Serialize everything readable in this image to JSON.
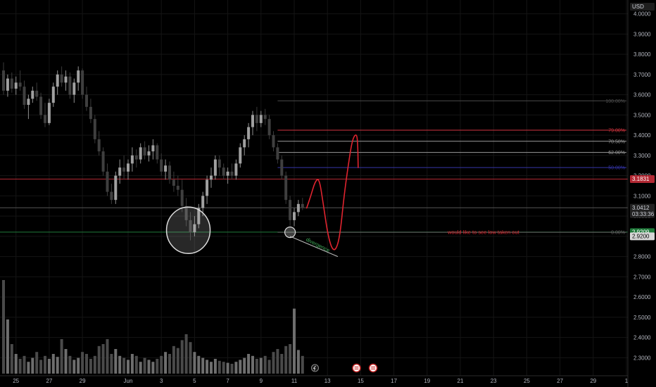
{
  "chart_data": {
    "type": "candlestick",
    "currency": "USD",
    "price_axis": {
      "min": 2.27,
      "max": 4.03,
      "ticks": [
        "4.0000",
        "3.9000",
        "3.8000",
        "3.7000",
        "3.6000",
        "3.5000",
        "3.4000",
        "3.3000",
        "3.2000",
        "3.1000",
        "3.0000",
        "2.9000",
        "2.8000",
        "2.7000",
        "2.6000",
        "2.5000",
        "2.4000",
        "2.3000"
      ]
    },
    "time_axis": {
      "labels": [
        {
          "bar": 3,
          "text": "25"
        },
        {
          "bar": 11,
          "text": "27"
        },
        {
          "bar": 19,
          "text": "29"
        },
        {
          "bar": 30,
          "text": "Jun"
        },
        {
          "bar": 38,
          "text": "3"
        },
        {
          "bar": 46,
          "text": "5"
        },
        {
          "bar": 54,
          "text": "7"
        },
        {
          "bar": 62,
          "text": "9"
        },
        {
          "bar": 70,
          "text": "11"
        },
        {
          "bar": 78,
          "text": "13"
        },
        {
          "bar": 86,
          "text": "15"
        },
        {
          "bar": 94,
          "text": "17"
        },
        {
          "bar": 102,
          "text": "19"
        },
        {
          "bar": 110,
          "text": "21"
        },
        {
          "bar": 118,
          "text": "23"
        },
        {
          "bar": 126,
          "text": "25"
        },
        {
          "bar": 134,
          "text": "27"
        },
        {
          "bar": 142,
          "text": "29"
        },
        {
          "bar": 150,
          "text": "1"
        }
      ]
    },
    "candles": [
      [
        3.72,
        3.76,
        3.6,
        3.62
      ],
      [
        3.62,
        3.7,
        3.59,
        3.68
      ],
      [
        3.68,
        3.71,
        3.61,
        3.63
      ],
      [
        3.63,
        3.69,
        3.6,
        3.66
      ],
      [
        3.66,
        3.72,
        3.62,
        3.64
      ],
      [
        3.64,
        3.67,
        3.53,
        3.55
      ],
      [
        3.55,
        3.6,
        3.48,
        3.58
      ],
      [
        3.58,
        3.64,
        3.56,
        3.62
      ],
      [
        3.62,
        3.66,
        3.57,
        3.59
      ],
      [
        3.59,
        3.61,
        3.48,
        3.5
      ],
      [
        3.5,
        3.56,
        3.44,
        3.46
      ],
      [
        3.46,
        3.58,
        3.45,
        3.56
      ],
      [
        3.56,
        3.66,
        3.54,
        3.64
      ],
      [
        3.64,
        3.72,
        3.6,
        3.7
      ],
      [
        3.7,
        3.74,
        3.64,
        3.66
      ],
      [
        3.66,
        3.72,
        3.62,
        3.69
      ],
      [
        3.69,
        3.71,
        3.58,
        3.6
      ],
      [
        3.6,
        3.68,
        3.56,
        3.66
      ],
      [
        3.66,
        3.74,
        3.62,
        3.72
      ],
      [
        3.72,
        3.73,
        3.58,
        3.6
      ],
      [
        3.6,
        3.64,
        3.52,
        3.54
      ],
      [
        3.54,
        3.58,
        3.46,
        3.48
      ],
      [
        3.48,
        3.5,
        3.36,
        3.38
      ],
      [
        3.38,
        3.42,
        3.3,
        3.32
      ],
      [
        3.32,
        3.34,
        3.2,
        3.22
      ],
      [
        3.22,
        3.26,
        3.1,
        3.12
      ],
      [
        3.12,
        3.16,
        3.06,
        3.08
      ],
      [
        3.08,
        3.22,
        3.06,
        3.2
      ],
      [
        3.2,
        3.28,
        3.16,
        3.24
      ],
      [
        3.24,
        3.3,
        3.18,
        3.22
      ],
      [
        3.22,
        3.28,
        3.18,
        3.26
      ],
      [
        3.26,
        3.34,
        3.22,
        3.3
      ],
      [
        3.3,
        3.33,
        3.24,
        3.28
      ],
      [
        3.28,
        3.36,
        3.26,
        3.34
      ],
      [
        3.34,
        3.37,
        3.28,
        3.3
      ],
      [
        3.3,
        3.35,
        3.27,
        3.32
      ],
      [
        3.32,
        3.38,
        3.28,
        3.35
      ],
      [
        3.35,
        3.36,
        3.26,
        3.28
      ],
      [
        3.28,
        3.31,
        3.2,
        3.22
      ],
      [
        3.22,
        3.28,
        3.18,
        3.25
      ],
      [
        3.25,
        3.27,
        3.16,
        3.18
      ],
      [
        3.18,
        3.22,
        3.12,
        3.15
      ],
      [
        3.15,
        3.2,
        3.1,
        3.13
      ],
      [
        3.13,
        3.18,
        3.02,
        3.05
      ],
      [
        3.05,
        3.09,
        2.95,
        2.98
      ],
      [
        2.98,
        3.02,
        2.88,
        2.92
      ],
      [
        2.92,
        3.0,
        2.9,
        2.96
      ],
      [
        2.96,
        3.06,
        2.94,
        3.04
      ],
      [
        3.04,
        3.12,
        3.0,
        3.1
      ],
      [
        3.1,
        3.2,
        3.06,
        3.18
      ],
      [
        3.18,
        3.24,
        3.14,
        3.2
      ],
      [
        3.2,
        3.3,
        3.18,
        3.28
      ],
      [
        3.28,
        3.3,
        3.2,
        3.24
      ],
      [
        3.24,
        3.26,
        3.18,
        3.2
      ],
      [
        3.2,
        3.24,
        3.16,
        3.22
      ],
      [
        3.22,
        3.26,
        3.18,
        3.2
      ],
      [
        3.2,
        3.28,
        3.18,
        3.26
      ],
      [
        3.26,
        3.36,
        3.24,
        3.34
      ],
      [
        3.34,
        3.4,
        3.3,
        3.38
      ],
      [
        3.38,
        3.46,
        3.34,
        3.44
      ],
      [
        3.44,
        3.52,
        3.4,
        3.5
      ],
      [
        3.5,
        3.54,
        3.42,
        3.46
      ],
      [
        3.46,
        3.52,
        3.44,
        3.5
      ],
      [
        3.5,
        3.53,
        3.45,
        3.48
      ],
      [
        3.48,
        3.5,
        3.38,
        3.4
      ],
      [
        3.4,
        3.42,
        3.32,
        3.34
      ],
      [
        3.34,
        3.36,
        3.26,
        3.28
      ],
      [
        3.28,
        3.3,
        3.18,
        3.2
      ],
      [
        3.2,
        3.22,
        3.06,
        3.08
      ],
      [
        3.08,
        3.1,
        2.95,
        2.98
      ],
      [
        2.98,
        3.04,
        2.95,
        3.02
      ],
      [
        3.02,
        3.08,
        3.0,
        3.06
      ],
      [
        3.06,
        3.09,
        3.03,
        3.04
      ]
    ],
    "volume": [
      0.95,
      0.55,
      0.3,
      0.2,
      0.15,
      0.18,
      0.12,
      0.16,
      0.22,
      0.14,
      0.18,
      0.15,
      0.2,
      0.17,
      0.35,
      0.25,
      0.18,
      0.14,
      0.16,
      0.22,
      0.2,
      0.15,
      0.18,
      0.28,
      0.3,
      0.35,
      0.2,
      0.25,
      0.18,
      0.16,
      0.14,
      0.2,
      0.18,
      0.12,
      0.16,
      0.14,
      0.12,
      0.15,
      0.18,
      0.22,
      0.2,
      0.28,
      0.26,
      0.34,
      0.4,
      0.32,
      0.22,
      0.18,
      0.16,
      0.14,
      0.12,
      0.15,
      0.13,
      0.12,
      0.11,
      0.1,
      0.12,
      0.14,
      0.16,
      0.2,
      0.18,
      0.15,
      0.16,
      0.18,
      0.14,
      0.22,
      0.25,
      0.2,
      0.28,
      0.3,
      0.66,
      0.24,
      0.18
    ],
    "horizontal_levels": [
      {
        "price": 3.1831,
        "color": "#b22833"
      },
      {
        "price": 3.0412,
        "color": "#555555"
      },
      {
        "price": 2.9209,
        "color": "#1f7a3a"
      }
    ],
    "fib": {
      "from_bar": 66,
      "to_bar": 150,
      "levels": [
        {
          "label": "100.00%",
          "price": 3.57,
          "color": "#4a4a4a"
        },
        {
          "label": "79.00%",
          "price": 3.425,
          "color": "#d2343f"
        },
        {
          "label": "70.50%",
          "price": 3.37,
          "color": "#9a9a9a"
        },
        {
          "label": "62.00%",
          "price": 3.315,
          "color": "#9a9a9a"
        },
        {
          "label": "50.00%",
          "price": 3.24,
          "color": "#3535a8"
        },
        {
          "label": "0.00%",
          "price": 2.92,
          "color": "#666666"
        }
      ]
    },
    "price_tags": [
      {
        "lines": [
          "USD"
        ],
        "price": 4.03,
        "bg": "#1e1e1e",
        "fg": "#d1d4dc"
      },
      {
        "lines": [
          "3.1831"
        ],
        "price": 3.1831,
        "bg": "#b22833",
        "fg": "#ffffff"
      },
      {
        "lines": [
          "3.0412",
          "03:33:36"
        ],
        "price": 3.0412,
        "bg": "#222222",
        "fg": "#d1d4dc"
      },
      {
        "lines": [
          "2.9209"
        ],
        "price": 2.9209,
        "bg": "#1f7a3a",
        "fg": "#ffffff"
      },
      {
        "lines": [
          "2.9200"
        ],
        "price": 2.9,
        "bg": "#d6d6d6",
        "fg": "#000000"
      }
    ],
    "annotations": {
      "projection": [
        [
          73,
          3.04
        ],
        [
          74,
          3.1
        ],
        [
          75,
          3.17
        ],
        [
          76,
          3.19
        ],
        [
          77,
          3.06
        ],
        [
          78,
          2.92
        ],
        [
          79,
          2.84
        ],
        [
          80,
          2.83
        ],
        [
          81,
          2.9
        ],
        [
          82,
          3.1
        ],
        [
          83,
          3.25
        ],
        [
          84,
          3.38
        ],
        [
          85,
          3.41
        ],
        [
          85.3,
          3.36
        ],
        [
          85.4,
          3.24
        ]
      ],
      "divergence_label": "divergence",
      "divergence_line": [
        [
          69,
          2.9
        ],
        [
          80.5,
          2.8
        ]
      ],
      "note": "would like to see low taken out",
      "big_circle": {
        "bar": 44.5,
        "price": 2.93
      },
      "small_circle": {
        "bar": 69,
        "price": 2.92
      }
    },
    "event_markers": [
      {
        "bar": 75,
        "kind": "lightning"
      },
      {
        "bar": 85,
        "kind": "flag"
      },
      {
        "bar": 89,
        "kind": "flag"
      }
    ]
  }
}
